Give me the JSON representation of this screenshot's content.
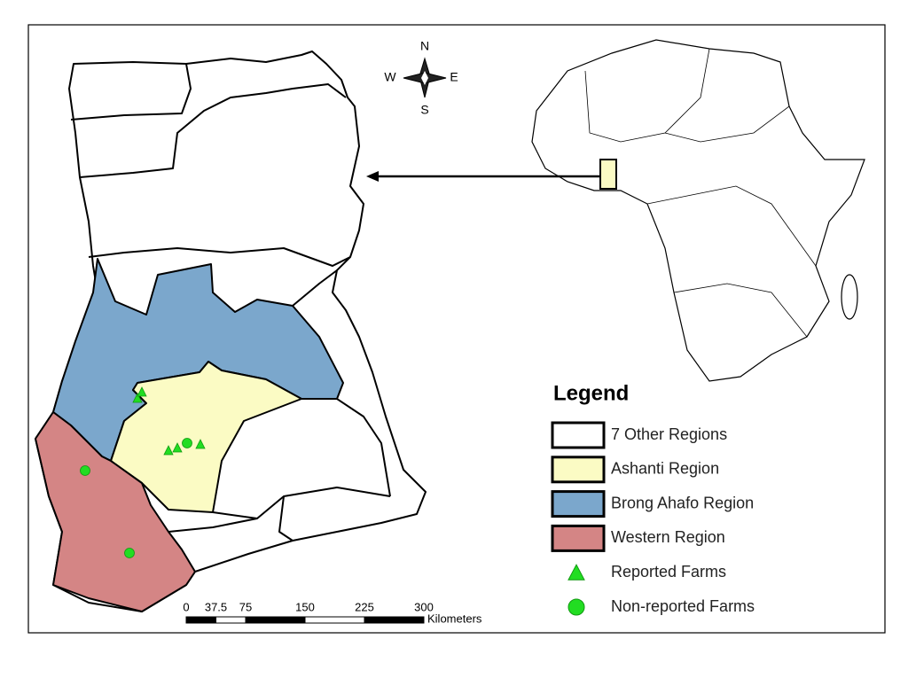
{
  "compass": {
    "north": "N",
    "east": "E",
    "south": "S",
    "west": "W"
  },
  "scale": {
    "ticks": [
      0,
      37.5,
      75,
      150,
      225,
      300
    ],
    "unit": "Kilometers"
  },
  "legend": {
    "title": "Legend",
    "items": [
      {
        "label": "7 Other Regions",
        "shape": "box",
        "color": "#ffffff"
      },
      {
        "label": "Ashanti Region",
        "shape": "box",
        "color": "#fbfbc4"
      },
      {
        "label": "Brong Ahafo Region",
        "shape": "box",
        "color": "#7ba7cc"
      },
      {
        "label": "Western Region",
        "shape": "box",
        "color": "#d48585"
      },
      {
        "label": "Reported Farms",
        "shape": "triangle",
        "color": "#22dd22"
      },
      {
        "label": "Non-reported Farms",
        "shape": "circle",
        "color": "#22dd22"
      }
    ]
  }
}
